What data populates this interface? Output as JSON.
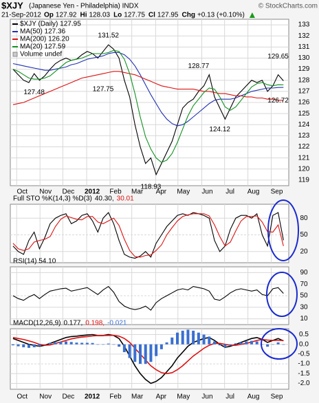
{
  "header": {
    "ticker": "$XJY",
    "name": "(Japanese Yen - Philadelphia) INDX",
    "source": "© StockCharts.com",
    "date": "21-Sep-2012",
    "quote": [
      {
        "k": "Op",
        "v": 127.92
      },
      {
        "k": "Hi",
        "v": 128.03
      },
      {
        "k": "Lo",
        "v": 127.75
      },
      {
        "k": "Cl",
        "v": 127.95
      },
      {
        "k": "Chg",
        "v": "+0.13 (+0.10%)"
      }
    ]
  },
  "chart_data": [
    {
      "type": "line",
      "grid": true,
      "x": [
        0,
        1,
        2,
        3,
        4,
        5,
        6,
        7,
        8,
        9,
        10,
        11,
        12,
        13,
        14,
        15,
        16,
        17,
        18,
        19,
        20,
        21,
        22,
        23,
        24,
        25,
        26,
        27,
        28,
        29,
        30,
        31,
        32,
        33,
        34,
        35,
        36,
        37,
        38,
        39,
        40,
        41,
        42,
        43,
        44,
        45,
        46,
        47,
        48,
        49,
        50,
        51
      ],
      "xlim": [
        -0.5,
        52
      ],
      "xticks": [
        {
          "value": 0.7,
          "label": "Oct"
        },
        {
          "value": 5.1,
          "label": "Nov"
        },
        {
          "value": 9.4,
          "label": "Dec"
        },
        {
          "value": 13.9,
          "label": "2012"
        },
        {
          "value": 18.3,
          "label": "Feb"
        },
        {
          "value": 22.4,
          "label": "Mar"
        },
        {
          "value": 26.9,
          "label": "Apr"
        },
        {
          "value": 31.1,
          "label": "May"
        },
        {
          "value": 35.6,
          "label": "Jun"
        },
        {
          "value": 39.9,
          "label": "Jul"
        },
        {
          "value": 44.3,
          "label": "Aug"
        },
        {
          "value": 48.7,
          "label": "Sep"
        }
      ],
      "ylim": [
        118.5,
        133.5
      ],
      "yticks": [
        119,
        120,
        121,
        122,
        123,
        124,
        125,
        126,
        127,
        128,
        129,
        130,
        131,
        132,
        133
      ],
      "series": [
        {
          "name": "$XJY (Daily) 127.95",
          "color": "#000000",
          "values": [
            129.0,
            128.5,
            128.0,
            127.8,
            128.6,
            128.0,
            128.4,
            129.0,
            129.5,
            129.8,
            130.0,
            129.8,
            129.9,
            130.3,
            130.6,
            130.4,
            130.0,
            130.6,
            131.2,
            130.8,
            130.0,
            128.0,
            126.5,
            124.0,
            122.0,
            120.5,
            121.0,
            119.5,
            120.5,
            121.5,
            122.5,
            124.0,
            125.5,
            126.0,
            126.3,
            127.0,
            127.5,
            128.5,
            126.5,
            125.5,
            124.5,
            125.5,
            126.5,
            127.0,
            127.5,
            128.0,
            127.8,
            128.0,
            127.0,
            127.5,
            128.5,
            127.95
          ]
        },
        {
          "name": "MA(50) 127.36",
          "color": "#2030b0",
          "values": [
            129.5,
            129.4,
            129.3,
            129.2,
            129.1,
            129.0,
            128.9,
            128.9,
            129.0,
            129.1,
            129.2,
            129.4,
            129.5,
            129.7,
            129.9,
            130.0,
            130.1,
            130.2,
            130.4,
            130.5,
            130.5,
            130.3,
            129.9,
            129.3,
            128.5,
            127.6,
            126.7,
            125.9,
            125.1,
            124.5,
            124.1,
            123.9,
            124.0,
            124.3,
            124.7,
            125.1,
            125.5,
            125.9,
            126.2,
            126.3,
            126.3,
            126.3,
            126.4,
            126.6,
            126.8,
            127.0,
            127.1,
            127.2,
            127.3,
            127.3,
            127.35,
            127.36
          ]
        },
        {
          "name": "MA(200) 126.20",
          "color": "#dd1010",
          "values": [
            125.8,
            125.9,
            126.0,
            126.2,
            126.4,
            126.6,
            126.8,
            127.0,
            127.2,
            127.4,
            127.6,
            127.8,
            128.0,
            128.2,
            128.3,
            128.4,
            128.5,
            128.6,
            128.7,
            128.8,
            128.8,
            128.7,
            128.6,
            128.5,
            128.3,
            128.1,
            127.9,
            127.7,
            127.5,
            127.4,
            127.3,
            127.2,
            127.2,
            127.2,
            127.2,
            127.1,
            127.0,
            127.0,
            126.9,
            126.8,
            126.8,
            126.7,
            126.6,
            126.6,
            126.5,
            126.5,
            126.4,
            126.4,
            126.3,
            126.3,
            126.2,
            126.2
          ]
        },
        {
          "name": "MA(20) 127.59",
          "color": "#109020",
          "values": [
            129.0,
            128.8,
            128.5,
            128.2,
            128.1,
            128.1,
            128.2,
            128.4,
            128.8,
            129.2,
            129.6,
            129.8,
            129.9,
            130.0,
            130.2,
            130.4,
            130.4,
            130.4,
            130.5,
            130.7,
            130.6,
            129.9,
            128.6,
            126.8,
            124.7,
            122.9,
            121.8,
            121.0,
            120.6,
            120.8,
            121.4,
            122.4,
            123.6,
            124.8,
            125.7,
            126.3,
            126.9,
            127.3,
            127.2,
            126.5,
            125.6,
            125.3,
            125.6,
            126.2,
            126.8,
            127.4,
            127.7,
            127.8,
            127.6,
            127.5,
            127.6,
            127.59
          ]
        }
      ],
      "volume_label": "Volume undef",
      "annotations": [
        {
          "label": 131.52,
          "x": 18
        },
        {
          "label": 127.48,
          "x": 4
        },
        {
          "label": 127.75,
          "x": 17
        },
        {
          "label": 128.77,
          "x": 35
        },
        {
          "label": 129.65,
          "x": 50
        },
        {
          "label": 124.12,
          "x": 39
        },
        {
          "label": 126.72,
          "x": 50
        },
        {
          "label": 118.93,
          "x": 26
        }
      ]
    },
    {
      "type": "line",
      "label": "Full STO %K(14,3) %D(3)",
      "ylim": [
        0,
        105
      ],
      "yticks": [
        20,
        50,
        80
      ],
      "series": [
        {
          "name": "40.30,",
          "color": "#000000",
          "values": [
            30,
            20,
            15,
            40,
            55,
            25,
            45,
            70,
            80,
            85,
            88,
            70,
            75,
            85,
            88,
            75,
            55,
            80,
            90,
            70,
            40,
            15,
            10,
            8,
            12,
            20,
            10,
            35,
            50,
            65,
            75,
            85,
            88,
            85,
            90,
            88,
            85,
            80,
            40,
            20,
            30,
            60,
            80,
            85,
            85,
            80,
            88,
            50,
            30,
            85,
            90,
            40.3
          ]
        },
        {
          "name": "30.01",
          "color": "#dd1010",
          "values": [
            35,
            25,
            22,
            25,
            37,
            40,
            42,
            47,
            65,
            78,
            84,
            81,
            78,
            77,
            83,
            83,
            73,
            70,
            75,
            80,
            67,
            42,
            22,
            11,
            10,
            13,
            14,
            22,
            32,
            50,
            63,
            75,
            83,
            86,
            88,
            88,
            88,
            84,
            68,
            47,
            30,
            37,
            57,
            75,
            83,
            83,
            84,
            73,
            56,
            55,
            68,
            30.01
          ]
        }
      ]
    },
    {
      "type": "line",
      "label": "RSI(14) 54.10",
      "ylim": [
        0,
        100
      ],
      "yticks": [
        10,
        30,
        50,
        70,
        90
      ],
      "series": [
        {
          "color": "#000000",
          "values": [
            50,
            45,
            42,
            48,
            52,
            45,
            52,
            58,
            60,
            62,
            63,
            58,
            60,
            62,
            64,
            58,
            52,
            60,
            66,
            56,
            40,
            32,
            28,
            26,
            28,
            32,
            25,
            38,
            45,
            50,
            55,
            60,
            62,
            60,
            66,
            64,
            62,
            58,
            44,
            42,
            48,
            55,
            60,
            62,
            60,
            58,
            60,
            52,
            50,
            62,
            64,
            54.1
          ]
        }
      ]
    },
    {
      "type": "line",
      "label": "MACD(12,26,9)",
      "ylim": [
        -2.3,
        0.8
      ],
      "yticks": [
        0.5,
        {
          "value": 0,
          "label": "0.0"
        },
        -0.5,
        {
          "value": -1,
          "label": "-1.0"
        },
        -1.5,
        {
          "value": -2,
          "label": "-2.0"
        }
      ],
      "series": [
        {
          "name": "0.177,",
          "color": "#000000",
          "values": [
            0.3,
            0.2,
            0.1,
            0.0,
            -0.05,
            -0.1,
            -0.05,
            0.05,
            0.15,
            0.25,
            0.35,
            0.4,
            0.42,
            0.45,
            0.48,
            0.5,
            0.45,
            0.45,
            0.5,
            0.45,
            0.3,
            -0.1,
            -0.6,
            -1.1,
            -1.5,
            -1.8,
            -2.0,
            -1.9,
            -1.7,
            -1.4,
            -1.1,
            -0.7,
            -0.4,
            -0.1,
            0.1,
            0.2,
            0.3,
            0.35,
            0.2,
            0.0,
            -0.15,
            -0.1,
            0.0,
            0.1,
            0.2,
            0.3,
            0.35,
            0.25,
            0.1,
            0.2,
            0.3,
            0.177
          ]
        },
        {
          "name": "0.198,",
          "color": "#dd1010",
          "values": [
            0.35,
            0.3,
            0.25,
            0.18,
            0.1,
            0.0,
            -0.05,
            -0.03,
            0.05,
            0.12,
            0.2,
            0.28,
            0.33,
            0.37,
            0.4,
            0.43,
            0.45,
            0.45,
            0.46,
            0.46,
            0.42,
            0.3,
            0.1,
            -0.2,
            -0.5,
            -0.8,
            -1.1,
            -1.3,
            -1.45,
            -1.5,
            -1.45,
            -1.3,
            -1.1,
            -0.85,
            -0.6,
            -0.4,
            -0.2,
            -0.05,
            0.05,
            0.05,
            0.0,
            -0.05,
            -0.05,
            0.0,
            0.05,
            0.12,
            0.2,
            0.25,
            0.22,
            0.2,
            0.2,
            0.198
          ]
        },
        {
          "name": "-0.021",
          "color": "#3a6fd0",
          "type": "bar",
          "values": [
            -0.05,
            -0.1,
            -0.15,
            -0.18,
            -0.15,
            -0.1,
            0,
            0.08,
            0.1,
            0.13,
            0.15,
            0.12,
            0.09,
            0.08,
            0.08,
            0.07,
            0,
            0,
            0.04,
            -0.01,
            -0.12,
            -0.4,
            -0.7,
            -0.9,
            -1.0,
            -1.0,
            -0.9,
            -0.6,
            -0.25,
            0.1,
            0.35,
            0.6,
            0.7,
            0.75,
            0.7,
            0.6,
            0.5,
            0.4,
            0.15,
            -0.05,
            -0.15,
            -0.05,
            0.05,
            0.1,
            0.15,
            0.18,
            0.15,
            0.0,
            -0.12,
            0,
            0.1,
            -0.021
          ]
        }
      ]
    }
  ]
}
